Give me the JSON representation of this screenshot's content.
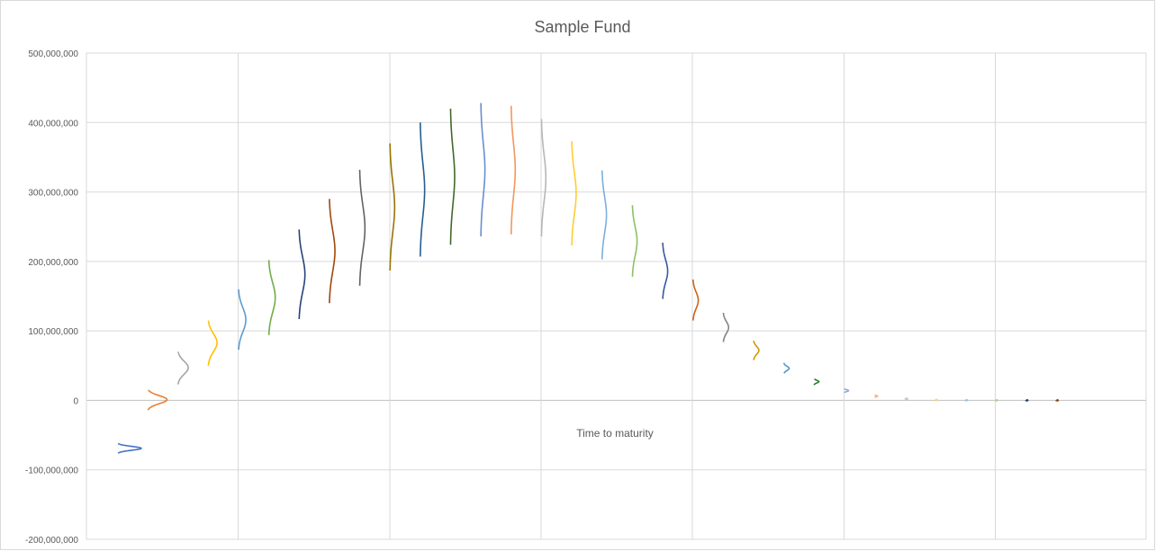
{
  "chart_data": {
    "type": "line",
    "title": "Sample Fund",
    "xlabel": "Time to maturity",
    "ylabel": "",
    "ylim": [
      -200000000,
      500000000
    ],
    "y_ticks": [
      "500,000,000",
      "400,000,000",
      "300,000,000",
      "200,000,000",
      "100,000,000",
      "0",
      "-100,000,000",
      "-200,000,000"
    ],
    "grid": true,
    "legend": "none",
    "colors": [
      "#4472C4",
      "#ED7D31",
      "#A5A5A5",
      "#FFC000",
      "#5B9BD5",
      "#70AD47",
      "#264478",
      "#9E480E",
      "#636363",
      "#997300",
      "#255E91",
      "#43682B",
      "#698ED0",
      "#F1975A",
      "#B7B7B7",
      "#FFCD33",
      "#7CAFDD",
      "#8CC168",
      "#335AA1",
      "#D26012",
      "#848484",
      "#CC9A00",
      "#5196CB",
      "#2E7D32",
      "#8EAADB",
      "#F4B183",
      "#C9C9C9",
      "#FFD966",
      "#9DC3E6",
      "#A9D18E",
      "#1F3864",
      "#843C0C"
    ],
    "series": [
      {
        "t": 1,
        "min": -76000000,
        "max": -62000000,
        "peak": -69000000,
        "amp": 0.8
      },
      {
        "t": 2,
        "min": -14000000,
        "max": 15000000,
        "peak": 1000000,
        "amp": 0.65
      },
      {
        "t": 3,
        "min": 23000000,
        "max": 70000000,
        "peak": 47000000,
        "amp": 0.35
      },
      {
        "t": 4,
        "min": 50000000,
        "max": 115000000,
        "peak": 83000000,
        "amp": 0.3
      },
      {
        "t": 5,
        "min": 73000000,
        "max": 160000000,
        "peak": 116000000,
        "amp": 0.25
      },
      {
        "t": 6,
        "min": 94000000,
        "max": 202000000,
        "peak": 148000000,
        "amp": 0.22
      },
      {
        "t": 7,
        "min": 117000000,
        "max": 246000000,
        "peak": 181000000,
        "amp": 0.2
      },
      {
        "t": 8,
        "min": 140000000,
        "max": 290000000,
        "peak": 215000000,
        "amp": 0.19
      },
      {
        "t": 9,
        "min": 165000000,
        "max": 332000000,
        "peak": 248000000,
        "amp": 0.18
      },
      {
        "t": 10,
        "min": 187000000,
        "max": 370000000,
        "peak": 278000000,
        "amp": 0.16
      },
      {
        "t": 11,
        "min": 207000000,
        "max": 400000000,
        "peak": 303000000,
        "amp": 0.15
      },
      {
        "t": 12,
        "min": 224000000,
        "max": 420000000,
        "peak": 322000000,
        "amp": 0.14
      },
      {
        "t": 13,
        "min": 236000000,
        "max": 428000000,
        "peak": 332000000,
        "amp": 0.14
      },
      {
        "t": 14,
        "min": 239000000,
        "max": 424000000,
        "peak": 332000000,
        "amp": 0.14
      },
      {
        "t": 15,
        "min": 236000000,
        "max": 405000000,
        "peak": 320000000,
        "amp": 0.15
      },
      {
        "t": 16,
        "min": 223000000,
        "max": 373000000,
        "peak": 298000000,
        "amp": 0.15
      },
      {
        "t": 17,
        "min": 203000000,
        "max": 331000000,
        "peak": 267000000,
        "amp": 0.15
      },
      {
        "t": 18,
        "min": 178000000,
        "max": 281000000,
        "peak": 229000000,
        "amp": 0.16
      },
      {
        "t": 19,
        "min": 146000000,
        "max": 227000000,
        "peak": 186000000,
        "amp": 0.17
      },
      {
        "t": 20,
        "min": 115000000,
        "max": 174000000,
        "peak": 144000000,
        "amp": 0.18
      },
      {
        "t": 21,
        "min": 84000000,
        "max": 126000000,
        "peak": 105000000,
        "amp": 0.18
      },
      {
        "t": 22,
        "min": 58000000,
        "max": 86000000,
        "peak": 72000000,
        "amp": 0.18
      },
      {
        "t": 23,
        "min": 39000000,
        "max": 54000000,
        "peak": 46000000,
        "amp": 0.18
      },
      {
        "t": 24,
        "min": 22000000,
        "max": 31000000,
        "peak": 27000000,
        "amp": 0.16
      },
      {
        "t": 25,
        "min": 11000000,
        "max": 17000000,
        "peak": 14000000,
        "amp": 0.14
      },
      {
        "t": 26,
        "min": 4000000,
        "max": 8000000,
        "peak": 6000000,
        "amp": 0.1
      },
      {
        "t": 27,
        "min": 1000000,
        "max": 3000000,
        "peak": 2000000,
        "amp": 0.08
      },
      {
        "t": 28,
        "min": 0,
        "max": 1000000,
        "peak": 500000,
        "amp": 0.06
      },
      {
        "t": 29,
        "min": 0,
        "max": 500000,
        "peak": 200000,
        "amp": 0.05
      },
      {
        "t": 30,
        "min": 0,
        "max": 300000,
        "peak": 100000,
        "amp": 0.04
      },
      {
        "t": 31,
        "min": 0,
        "max": 200000,
        "peak": 50000,
        "amp": 0.04
      },
      {
        "t": 32,
        "min": 0,
        "max": 100000,
        "peak": 20000,
        "amp": 0.04
      }
    ]
  }
}
